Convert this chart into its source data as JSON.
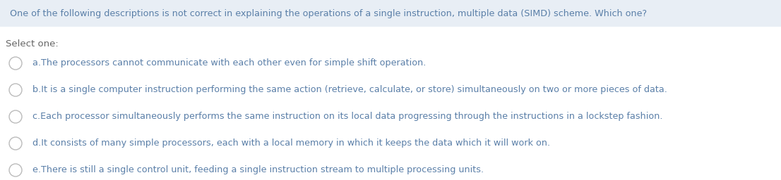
{
  "header_text": "One of the following descriptions is not correct in explaining the operations of a single instruction, multiple data (SIMD) scheme. Which one?",
  "header_bg": "#e8eef5",
  "header_text_color": "#5a7fa8",
  "body_bg": "#ffffff",
  "select_label": "Select one:",
  "select_label_color": "#666666",
  "options": [
    "a.The processors cannot communicate with each other even for simple shift operation.",
    "b.It is a single computer instruction performing the same action (retrieve, calculate, or store) simultaneously on two or more pieces of data.",
    "c.Each processor simultaneously performs the same instruction on its local data progressing through the instructions in a lockstep fashion.",
    "d.It consists of many simple processors, each with a local memory in which it keeps the data which it will work on.",
    "e.There is still a single control unit, feeding a single instruction stream to multiple processing units."
  ],
  "option_color": "#5a7fa8",
  "circle_edge_color": "#bbbbbb",
  "header_fontsize": 9.2,
  "option_fontsize": 9.2,
  "select_fontsize": 9.5
}
